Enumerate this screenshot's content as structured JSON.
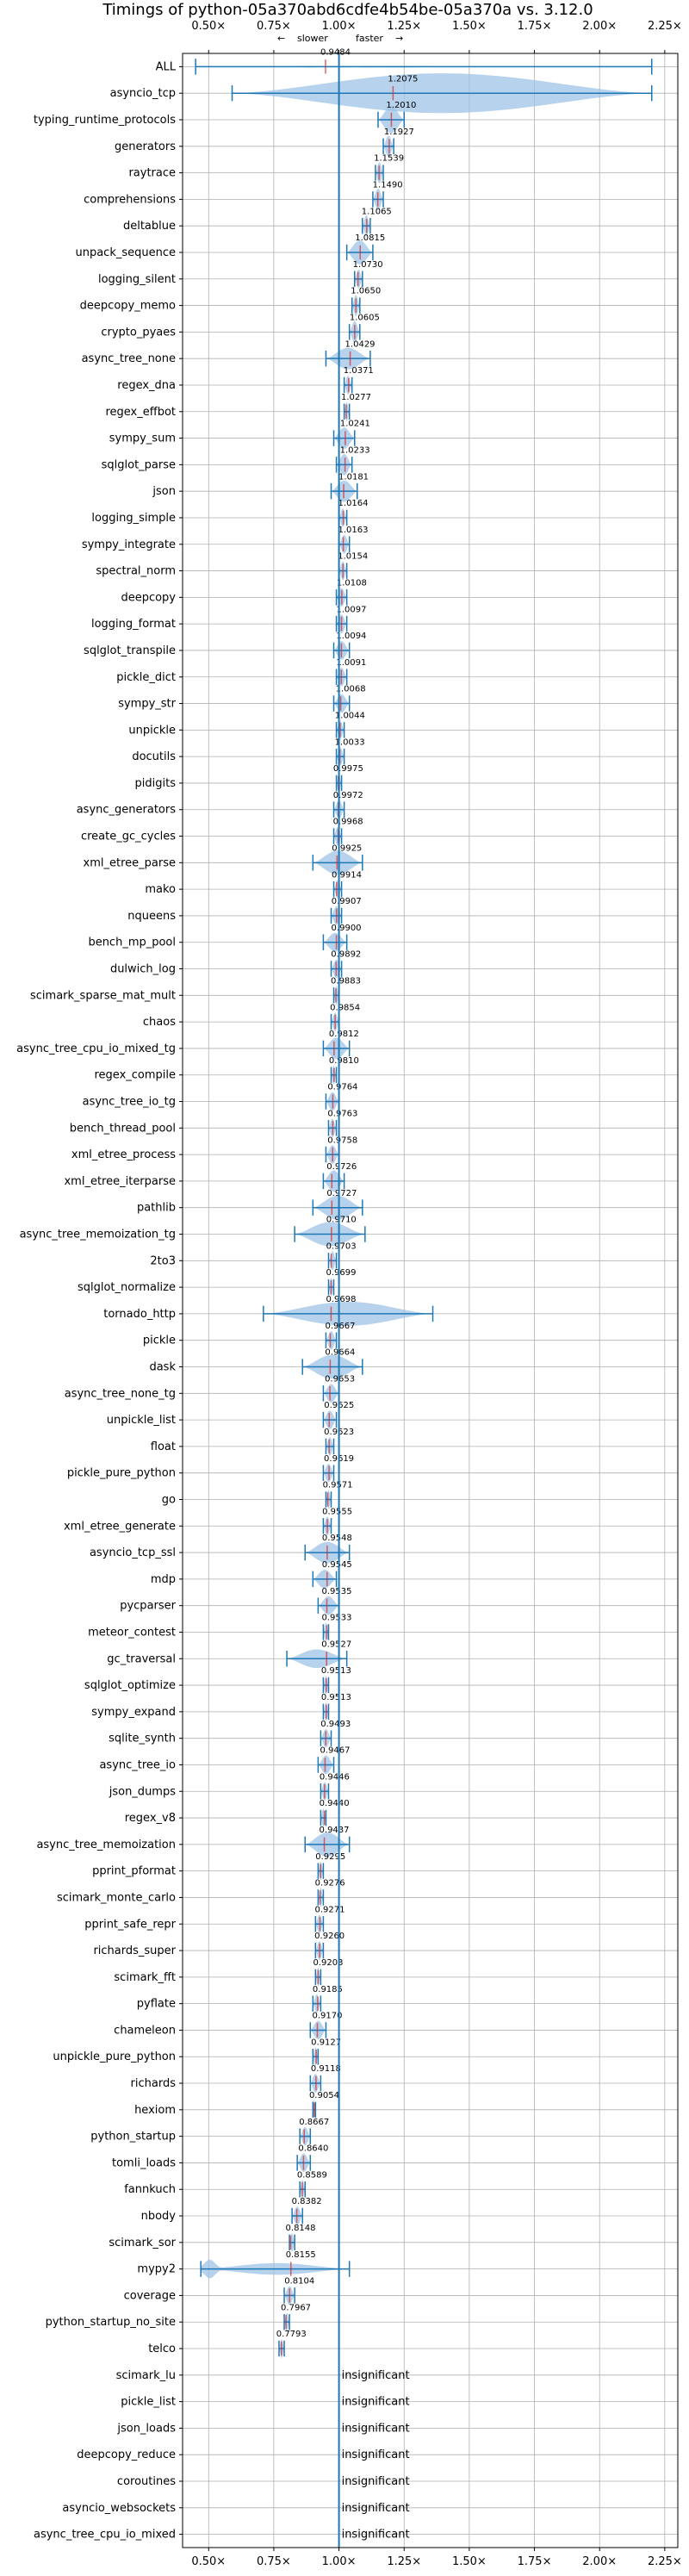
{
  "chart_data": {
    "type": "violin",
    "title": "Timings of python-05a370abd6cdfe4b54be-05a370a vs. 3.12.0",
    "direction_note": {
      "left": "slower",
      "right": "faster",
      "left_arrow": "←",
      "right_arrow": "→"
    },
    "xlim": [
      0.4,
      2.3
    ],
    "xticks": [
      0.5,
      0.75,
      1.0,
      1.25,
      1.5,
      1.75,
      2.0,
      2.25
    ],
    "xtick_labels": [
      "0.50×",
      "0.75×",
      "1.00×",
      "1.25×",
      "1.50×",
      "1.75×",
      "2.00×",
      "2.25×"
    ],
    "reference_line": 1.0,
    "colors": {
      "violin": "#9dc3e6",
      "mark": "#1f77b4",
      "median": "#d62728",
      "grid": "#b0b0b0"
    },
    "insignificant_label": "insignificant",
    "rows": [
      {
        "name": "ALL",
        "value": 0.9484,
        "label": "0.9484",
        "min": 0.45,
        "max": 2.2,
        "width": 0.03,
        "multimodal": true
      },
      {
        "name": "asyncio_tcp",
        "value": 1.2075,
        "label": "1.2075",
        "min": 0.59,
        "max": 2.2,
        "width": 0.75
      },
      {
        "name": "typing_runtime_protocols",
        "value": 1.201,
        "label": "1.2010",
        "min": 1.15,
        "max": 1.25,
        "width": 0.5
      },
      {
        "name": "generators",
        "value": 1.1927,
        "label": "1.1927",
        "min": 1.17,
        "max": 1.21,
        "width": 0.4
      },
      {
        "name": "raytrace",
        "value": 1.1539,
        "label": "1.1539",
        "min": 1.14,
        "max": 1.17,
        "width": 0.4
      },
      {
        "name": "comprehensions",
        "value": 1.149,
        "label": "1.1490",
        "min": 1.13,
        "max": 1.17,
        "width": 0.4
      },
      {
        "name": "deltablue",
        "value": 1.1065,
        "label": "1.1065",
        "min": 1.09,
        "max": 1.12,
        "width": 0.4
      },
      {
        "name": "unpack_sequence",
        "value": 1.0815,
        "label": "1.0815",
        "min": 1.03,
        "max": 1.13,
        "width": 0.45
      },
      {
        "name": "logging_silent",
        "value": 1.073,
        "label": "1.0730",
        "min": 1.06,
        "max": 1.09,
        "width": 0.35
      },
      {
        "name": "deepcopy_memo",
        "value": 1.065,
        "label": "1.0650",
        "min": 1.05,
        "max": 1.08,
        "width": 0.4
      },
      {
        "name": "crypto_pyaes",
        "value": 1.0605,
        "label": "1.0605",
        "min": 1.04,
        "max": 1.08,
        "width": 0.4
      },
      {
        "name": "async_tree_none",
        "value": 1.0429,
        "label": "1.0429",
        "min": 0.95,
        "max": 1.12,
        "width": 0.4
      },
      {
        "name": "regex_dna",
        "value": 1.0371,
        "label": "1.0371",
        "min": 1.02,
        "max": 1.05,
        "width": 0.35
      },
      {
        "name": "regex_effbot",
        "value": 1.0277,
        "label": "1.0277",
        "min": 1.02,
        "max": 1.04,
        "width": 0.35
      },
      {
        "name": "sympy_sum",
        "value": 1.0241,
        "label": "1.0241",
        "min": 0.98,
        "max": 1.06,
        "width": 0.4
      },
      {
        "name": "sqlglot_parse",
        "value": 1.0233,
        "label": "1.0233",
        "min": 0.99,
        "max": 1.05,
        "width": 0.4
      },
      {
        "name": "json",
        "value": 1.0181,
        "label": "1.0181",
        "min": 0.97,
        "max": 1.07,
        "width": 0.4
      },
      {
        "name": "logging_simple",
        "value": 1.0164,
        "label": "1.0164",
        "min": 1.0,
        "max": 1.03,
        "width": 0.35
      },
      {
        "name": "sympy_integrate",
        "value": 1.0163,
        "label": "1.0163",
        "min": 1.0,
        "max": 1.04,
        "width": 0.35
      },
      {
        "name": "spectral_norm",
        "value": 1.0154,
        "label": "1.0154",
        "min": 1.0,
        "max": 1.03,
        "width": 0.35
      },
      {
        "name": "deepcopy",
        "value": 1.0108,
        "label": "1.0108",
        "min": 0.99,
        "max": 1.03,
        "width": 0.35
      },
      {
        "name": "logging_format",
        "value": 1.0097,
        "label": "1.0097",
        "min": 0.99,
        "max": 1.03,
        "width": 0.35
      },
      {
        "name": "sqlglot_transpile",
        "value": 1.0094,
        "label": "1.0094",
        "min": 0.98,
        "max": 1.04,
        "width": 0.35
      },
      {
        "name": "pickle_dict",
        "value": 1.0091,
        "label": "1.0091",
        "min": 0.99,
        "max": 1.03,
        "width": 0.35
      },
      {
        "name": "sympy_str",
        "value": 1.0068,
        "label": "1.0068",
        "min": 0.98,
        "max": 1.04,
        "width": 0.35
      },
      {
        "name": "unpickle",
        "value": 1.0044,
        "label": "1.0044",
        "min": 0.99,
        "max": 1.02,
        "width": 0.35
      },
      {
        "name": "docutils",
        "value": 1.0033,
        "label": "1.0033",
        "min": 0.99,
        "max": 1.02,
        "width": 0.35
      },
      {
        "name": "pidigits",
        "value": 0.9975,
        "label": "0.9975",
        "min": 0.99,
        "max": 1.01,
        "width": 0.35
      },
      {
        "name": "async_generators",
        "value": 0.9972,
        "label": "0.9972",
        "min": 0.98,
        "max": 1.02,
        "width": 0.35
      },
      {
        "name": "create_gc_cycles",
        "value": 0.9968,
        "label": "0.9968",
        "min": 0.98,
        "max": 1.01,
        "width": 0.35
      },
      {
        "name": "xml_etree_parse",
        "value": 0.9925,
        "label": "0.9925",
        "min": 0.9,
        "max": 1.09,
        "width": 0.45
      },
      {
        "name": "mako",
        "value": 0.9914,
        "label": "0.9914",
        "min": 0.98,
        "max": 1.01,
        "width": 0.35
      },
      {
        "name": "nqueens",
        "value": 0.9907,
        "label": "0.9907",
        "min": 0.97,
        "max": 1.01,
        "width": 0.35
      },
      {
        "name": "bench_mp_pool",
        "value": 0.99,
        "label": "0.9900",
        "min": 0.94,
        "max": 1.03,
        "width": 0.35
      },
      {
        "name": "dulwich_log",
        "value": 0.9892,
        "label": "0.9892",
        "min": 0.97,
        "max": 1.01,
        "width": 0.35
      },
      {
        "name": "scimark_sparse_mat_mult",
        "value": 0.9883,
        "label": "0.9883",
        "min": 0.98,
        "max": 1.0,
        "width": 0.35
      },
      {
        "name": "chaos",
        "value": 0.9854,
        "label": "0.9854",
        "min": 0.97,
        "max": 1.0,
        "width": 0.35
      },
      {
        "name": "async_tree_cpu_io_mixed_tg",
        "value": 0.9812,
        "label": "0.9812",
        "min": 0.94,
        "max": 1.04,
        "width": 0.4
      },
      {
        "name": "regex_compile",
        "value": 0.981,
        "label": "0.9810",
        "min": 0.97,
        "max": 0.99,
        "width": 0.35
      },
      {
        "name": "async_tree_io_tg",
        "value": 0.9764,
        "label": "0.9764",
        "min": 0.95,
        "max": 1.0,
        "width": 0.35
      },
      {
        "name": "bench_thread_pool",
        "value": 0.9763,
        "label": "0.9763",
        "min": 0.96,
        "max": 0.99,
        "width": 0.35
      },
      {
        "name": "xml_etree_process",
        "value": 0.9758,
        "label": "0.9758",
        "min": 0.95,
        "max": 1.0,
        "width": 0.35
      },
      {
        "name": "xml_etree_iterparse",
        "value": 0.9726,
        "label": "0.9726",
        "min": 0.94,
        "max": 1.02,
        "width": 0.4
      },
      {
        "name": "pathlib",
        "value": 0.9727,
        "label": "0.9727",
        "min": 0.9,
        "max": 1.09,
        "width": 0.45
      },
      {
        "name": "async_tree_memoization_tg",
        "value": 0.971,
        "label": "0.9710",
        "min": 0.83,
        "max": 1.1,
        "width": 0.45
      },
      {
        "name": "2to3",
        "value": 0.9703,
        "label": "0.9703",
        "min": 0.96,
        "max": 0.99,
        "width": 0.35
      },
      {
        "name": "sqlglot_normalize",
        "value": 0.9699,
        "label": "0.9699",
        "min": 0.96,
        "max": 0.98,
        "width": 0.35
      },
      {
        "name": "tornado_http",
        "value": 0.9698,
        "label": "0.9698",
        "min": 0.71,
        "max": 1.36,
        "width": 0.45
      },
      {
        "name": "pickle",
        "value": 0.9667,
        "label": "0.9667",
        "min": 0.95,
        "max": 0.99,
        "width": 0.35
      },
      {
        "name": "dask",
        "value": 0.9664,
        "label": "0.9664",
        "min": 0.86,
        "max": 1.09,
        "width": 0.45
      },
      {
        "name": "async_tree_none_tg",
        "value": 0.9653,
        "label": "0.9653",
        "min": 0.94,
        "max": 1.0,
        "width": 0.35
      },
      {
        "name": "unpickle_list",
        "value": 0.9625,
        "label": "0.9625",
        "min": 0.94,
        "max": 0.99,
        "width": 0.35
      },
      {
        "name": "float",
        "value": 0.9623,
        "label": "0.9623",
        "min": 0.95,
        "max": 0.98,
        "width": 0.35
      },
      {
        "name": "pickle_pure_python",
        "value": 0.9619,
        "label": "0.9619",
        "min": 0.94,
        "max": 0.98,
        "width": 0.35
      },
      {
        "name": "go",
        "value": 0.9571,
        "label": "0.9571",
        "min": 0.95,
        "max": 0.97,
        "width": 0.35
      },
      {
        "name": "xml_etree_generate",
        "value": 0.9555,
        "label": "0.9555",
        "min": 0.94,
        "max": 0.97,
        "width": 0.35
      },
      {
        "name": "asyncio_tcp_ssl",
        "value": 0.9548,
        "label": "0.9548",
        "min": 0.87,
        "max": 1.04,
        "width": 0.4
      },
      {
        "name": "mdp",
        "value": 0.9545,
        "label": "0.9545",
        "min": 0.9,
        "max": 0.99,
        "width": 0.35
      },
      {
        "name": "pycparser",
        "value": 0.9535,
        "label": "0.9535",
        "min": 0.92,
        "max": 1.0,
        "width": 0.35
      },
      {
        "name": "meteor_contest",
        "value": 0.9533,
        "label": "0.9533",
        "min": 0.94,
        "max": 0.96,
        "width": 0.35
      },
      {
        "name": "gc_traversal",
        "value": 0.9527,
        "label": "0.9527",
        "min": 0.8,
        "max": 1.03,
        "width": 0.35
      },
      {
        "name": "sqlglot_optimize",
        "value": 0.9513,
        "label": "0.9513",
        "min": 0.94,
        "max": 0.96,
        "width": 0.35
      },
      {
        "name": "sympy_expand",
        "value": 0.9513,
        "label": "0.9513",
        "min": 0.94,
        "max": 0.96,
        "width": 0.35
      },
      {
        "name": "sqlite_synth",
        "value": 0.9493,
        "label": "0.9493",
        "min": 0.93,
        "max": 0.97,
        "width": 0.35
      },
      {
        "name": "async_tree_io",
        "value": 0.9467,
        "label": "0.9467",
        "min": 0.92,
        "max": 0.98,
        "width": 0.35
      },
      {
        "name": "json_dumps",
        "value": 0.9446,
        "label": "0.9446",
        "min": 0.93,
        "max": 0.96,
        "width": 0.35
      },
      {
        "name": "regex_v8",
        "value": 0.944,
        "label": "0.9440",
        "min": 0.93,
        "max": 0.95,
        "width": 0.35
      },
      {
        "name": "async_tree_memoization",
        "value": 0.9437,
        "label": "0.9437",
        "min": 0.87,
        "max": 1.04,
        "width": 0.45
      },
      {
        "name": "pprint_pformat",
        "value": 0.9295,
        "label": "0.9295",
        "min": 0.92,
        "max": 0.94,
        "width": 0.35
      },
      {
        "name": "scimark_monte_carlo",
        "value": 0.9276,
        "label": "0.9276",
        "min": 0.92,
        "max": 0.94,
        "width": 0.35
      },
      {
        "name": "pprint_safe_repr",
        "value": 0.9271,
        "label": "0.9271",
        "min": 0.91,
        "max": 0.94,
        "width": 0.35
      },
      {
        "name": "richards_super",
        "value": 0.926,
        "label": "0.9260",
        "min": 0.91,
        "max": 0.94,
        "width": 0.35
      },
      {
        "name": "scimark_fft",
        "value": 0.9203,
        "label": "0.9203",
        "min": 0.91,
        "max": 0.93,
        "width": 0.35
      },
      {
        "name": "pyflate",
        "value": 0.9185,
        "label": "0.9185",
        "min": 0.9,
        "max": 0.93,
        "width": 0.35
      },
      {
        "name": "chameleon",
        "value": 0.917,
        "label": "0.9170",
        "min": 0.89,
        "max": 0.95,
        "width": 0.35
      },
      {
        "name": "unpickle_pure_python",
        "value": 0.9127,
        "label": "0.9127",
        "min": 0.9,
        "max": 0.92,
        "width": 0.35
      },
      {
        "name": "richards",
        "value": 0.9118,
        "label": "0.9118",
        "min": 0.89,
        "max": 0.93,
        "width": 0.35
      },
      {
        "name": "hexiom",
        "value": 0.9054,
        "label": "0.9054",
        "min": 0.9,
        "max": 0.91,
        "width": 0.35
      },
      {
        "name": "python_startup",
        "value": 0.8667,
        "label": "0.8667",
        "min": 0.85,
        "max": 0.89,
        "width": 0.35
      },
      {
        "name": "tomli_loads",
        "value": 0.864,
        "label": "0.8640",
        "min": 0.84,
        "max": 0.89,
        "width": 0.35
      },
      {
        "name": "fannkuch",
        "value": 0.8589,
        "label": "0.8589",
        "min": 0.85,
        "max": 0.87,
        "width": 0.35
      },
      {
        "name": "nbody",
        "value": 0.8382,
        "label": "0.8382",
        "min": 0.82,
        "max": 0.86,
        "width": 0.35
      },
      {
        "name": "scimark_sor",
        "value": 0.8148,
        "label": "0.8148",
        "min": 0.81,
        "max": 0.83,
        "width": 0.35
      },
      {
        "name": "mypy2",
        "value": 0.8155,
        "label": "0.8155",
        "min": 0.47,
        "max": 1.04,
        "width": 0.4,
        "bulge_left": true
      },
      {
        "name": "coverage",
        "value": 0.8104,
        "label": "0.8104",
        "min": 0.79,
        "max": 0.83,
        "width": 0.35
      },
      {
        "name": "python_startup_no_site",
        "value": 0.7967,
        "label": "0.7967",
        "min": 0.79,
        "max": 0.81,
        "width": 0.35
      },
      {
        "name": "telco",
        "value": 0.7793,
        "label": "0.7793",
        "min": 0.77,
        "max": 0.79,
        "width": 0.35
      },
      {
        "name": "scimark_lu",
        "insignificant": true
      },
      {
        "name": "pickle_list",
        "insignificant": true
      },
      {
        "name": "json_loads",
        "insignificant": true
      },
      {
        "name": "deepcopy_reduce",
        "insignificant": true
      },
      {
        "name": "coroutines",
        "insignificant": true
      },
      {
        "name": "asyncio_websockets",
        "insignificant": true
      },
      {
        "name": "async_tree_cpu_io_mixed",
        "insignificant": true
      }
    ]
  }
}
